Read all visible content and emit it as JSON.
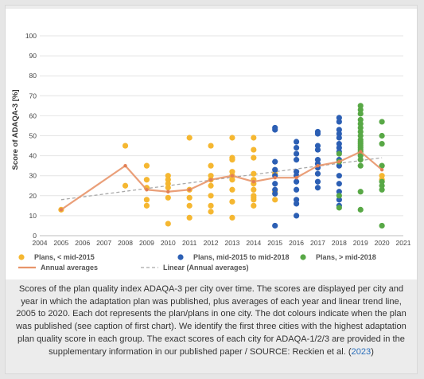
{
  "chart_data": {
    "type": "scatter",
    "ylabel": "Score of ADAQA-3 [%]",
    "xlim": [
      2004,
      2021
    ],
    "ylim": [
      0,
      100
    ],
    "xticks": [
      2004,
      2005,
      2006,
      2007,
      2008,
      2009,
      2010,
      2011,
      2012,
      2013,
      2014,
      2015,
      2016,
      2017,
      2018,
      2019,
      2020,
      2021
    ],
    "yticks": [
      0,
      10,
      20,
      30,
      40,
      50,
      60,
      70,
      80,
      90,
      100
    ],
    "grid": "horizontal",
    "legend": "bottom",
    "series": [
      {
        "name": "Plans, < mid-2015",
        "color": "#f5b731",
        "points": [
          [
            2005,
            13
          ],
          [
            2008,
            45
          ],
          [
            2008,
            25
          ],
          [
            2009,
            35
          ],
          [
            2009,
            28
          ],
          [
            2009,
            24
          ],
          [
            2009,
            18
          ],
          [
            2009,
            15
          ],
          [
            2010,
            30
          ],
          [
            2010,
            28
          ],
          [
            2010,
            26
          ],
          [
            2010,
            24
          ],
          [
            2010,
            19
          ],
          [
            2010,
            6
          ],
          [
            2011,
            49
          ],
          [
            2011,
            23
          ],
          [
            2011,
            19
          ],
          [
            2011,
            15
          ],
          [
            2011,
            9
          ],
          [
            2012,
            45
          ],
          [
            2012,
            35
          ],
          [
            2012,
            30
          ],
          [
            2012,
            28
          ],
          [
            2012,
            25
          ],
          [
            2012,
            20
          ],
          [
            2012,
            15
          ],
          [
            2012,
            12
          ],
          [
            2013,
            49
          ],
          [
            2013,
            39
          ],
          [
            2013,
            38
          ],
          [
            2013,
            32
          ],
          [
            2013,
            30
          ],
          [
            2013,
            28
          ],
          [
            2013,
            23
          ],
          [
            2013,
            17
          ],
          [
            2013,
            9
          ],
          [
            2014,
            49
          ],
          [
            2014,
            43
          ],
          [
            2014,
            39
          ],
          [
            2014,
            31
          ],
          [
            2014,
            28
          ],
          [
            2014,
            26
          ],
          [
            2014,
            23
          ],
          [
            2014,
            20
          ],
          [
            2014,
            19
          ],
          [
            2014,
            18
          ],
          [
            2014,
            15
          ],
          [
            2015,
            31
          ],
          [
            2015,
            22
          ],
          [
            2015,
            18
          ],
          [
            2020,
            30
          ],
          [
            2020,
            28
          ]
        ]
      },
      {
        "name": "Plans, mid-2015 to mid-2018",
        "color": "#2c5fb4",
        "points": [
          [
            2015,
            54
          ],
          [
            2015,
            53
          ],
          [
            2015,
            37
          ],
          [
            2015,
            33
          ],
          [
            2015,
            30
          ],
          [
            2015,
            26
          ],
          [
            2015,
            23
          ],
          [
            2015,
            21
          ],
          [
            2015,
            5
          ],
          [
            2016,
            47
          ],
          [
            2016,
            44
          ],
          [
            2016,
            41
          ],
          [
            2016,
            38
          ],
          [
            2016,
            32
          ],
          [
            2016,
            30
          ],
          [
            2016,
            27
          ],
          [
            2016,
            23
          ],
          [
            2016,
            18
          ],
          [
            2016,
            16
          ],
          [
            2016,
            10
          ],
          [
            2017,
            52
          ],
          [
            2017,
            51
          ],
          [
            2017,
            45
          ],
          [
            2017,
            43
          ],
          [
            2017,
            38
          ],
          [
            2017,
            36
          ],
          [
            2017,
            34
          ],
          [
            2017,
            31
          ],
          [
            2017,
            27
          ],
          [
            2017,
            24
          ],
          [
            2018,
            59
          ],
          [
            2018,
            57
          ],
          [
            2018,
            53
          ],
          [
            2018,
            51
          ],
          [
            2018,
            49
          ],
          [
            2018,
            46
          ],
          [
            2018,
            44
          ],
          [
            2018,
            42
          ],
          [
            2018,
            38
          ],
          [
            2018,
            35
          ],
          [
            2018,
            30
          ],
          [
            2018,
            26
          ],
          [
            2018,
            22
          ],
          [
            2018,
            18
          ],
          [
            2018,
            15
          ]
        ]
      },
      {
        "name": "Plans, > mid-2018",
        "color": "#58a846",
        "points": [
          [
            2018,
            41
          ],
          [
            2018,
            37
          ],
          [
            2018,
            20
          ],
          [
            2018,
            14
          ],
          [
            2019,
            65
          ],
          [
            2019,
            63
          ],
          [
            2019,
            61
          ],
          [
            2019,
            58
          ],
          [
            2019,
            56
          ],
          [
            2019,
            54
          ],
          [
            2019,
            52
          ],
          [
            2019,
            50
          ],
          [
            2019,
            48
          ],
          [
            2019,
            47
          ],
          [
            2019,
            46
          ],
          [
            2019,
            45
          ],
          [
            2019,
            44
          ],
          [
            2019,
            43
          ],
          [
            2019,
            42
          ],
          [
            2019,
            41
          ],
          [
            2019,
            40
          ],
          [
            2019,
            38
          ],
          [
            2019,
            35
          ],
          [
            2019,
            22
          ],
          [
            2019,
            13
          ],
          [
            2020,
            57
          ],
          [
            2020,
            50
          ],
          [
            2020,
            46
          ],
          [
            2020,
            35
          ],
          [
            2020,
            27
          ],
          [
            2020,
            25
          ],
          [
            2020,
            23
          ],
          [
            2020,
            5
          ]
        ]
      }
    ],
    "annual_averages": {
      "name": "Annual averages",
      "color": "#e8956a",
      "points": [
        [
          2005,
          13
        ],
        [
          2008,
          35
        ],
        [
          2009,
          23
        ],
        [
          2010,
          22
        ],
        [
          2011,
          23
        ],
        [
          2012,
          28
        ],
        [
          2013,
          30
        ],
        [
          2014,
          27
        ],
        [
          2015,
          29
        ],
        [
          2016,
          29
        ],
        [
          2017,
          35
        ],
        [
          2018,
          37
        ],
        [
          2019,
          42
        ],
        [
          2020,
          33
        ]
      ]
    },
    "linear_trend": {
      "name": "Linear (Annual averages)",
      "color": "#a8a8a8",
      "points": [
        [
          2005,
          18
        ],
        [
          2020,
          39
        ]
      ]
    }
  },
  "caption": {
    "text": "Scores of the plan quality index ADAQA-3 per city over time. The scores are displayed per city and year in which the adaptation plan was published, plus averages of each year and linear trend line, 2005 to 2020. Each dot represents the plan/plans in one city. The dot colours indicate when the plan was published (see caption of first chart). We identify the first three cities with the highest adaptation plan quality score in each group. The exact scores of each city for ADAQA-1/2/3 are provided in the supplementary information in our published paper / SOURCE: Reckien et al. (",
    "link_text": "2023",
    "tail": ")"
  }
}
